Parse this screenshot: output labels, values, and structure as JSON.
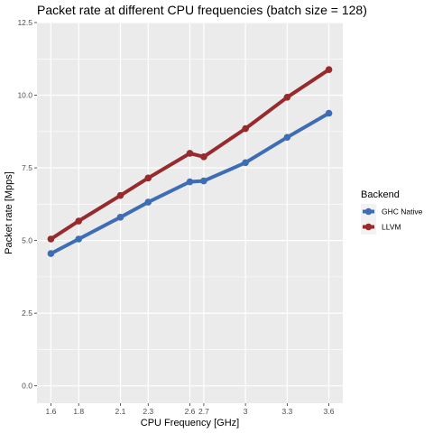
{
  "chart_data": {
    "type": "line",
    "title": "Packet rate at different CPU frequencies (batch size = 128)",
    "xlabel": "CPU Frequency [GHz]",
    "ylabel": "Packet rate [Mpps]",
    "x": [
      1.6,
      1.8,
      2.1,
      2.3,
      2.6,
      2.7,
      3.0,
      3.3,
      3.6
    ],
    "x_tick_labels": [
      "1.6",
      "1.8",
      "2.1",
      "2.3",
      "2.6",
      "2.7",
      "3",
      "3.3",
      "3.6"
    ],
    "y_ticks": [
      0,
      2.5,
      5,
      7.5,
      10,
      12.5
    ],
    "y_tick_labels": [
      "0.0",
      "2.5",
      "5.0",
      "7.5",
      "10.0",
      "12.5"
    ],
    "xlim": [
      1.5,
      3.7
    ],
    "ylim": [
      -0.6,
      12.5
    ],
    "grid": true,
    "legend_position": "right",
    "legend_title": "Backend",
    "series": [
      {
        "name": "GHC Native",
        "color": "#3e6db5",
        "values": [
          4.55,
          5.05,
          5.8,
          6.32,
          7.02,
          7.05,
          7.68,
          8.55,
          9.38
        ]
      },
      {
        "name": "LLVM",
        "color": "#962a2d",
        "values": [
          5.05,
          5.67,
          6.55,
          7.15,
          8.0,
          7.88,
          8.85,
          9.93,
          10.88
        ]
      }
    ]
  }
}
